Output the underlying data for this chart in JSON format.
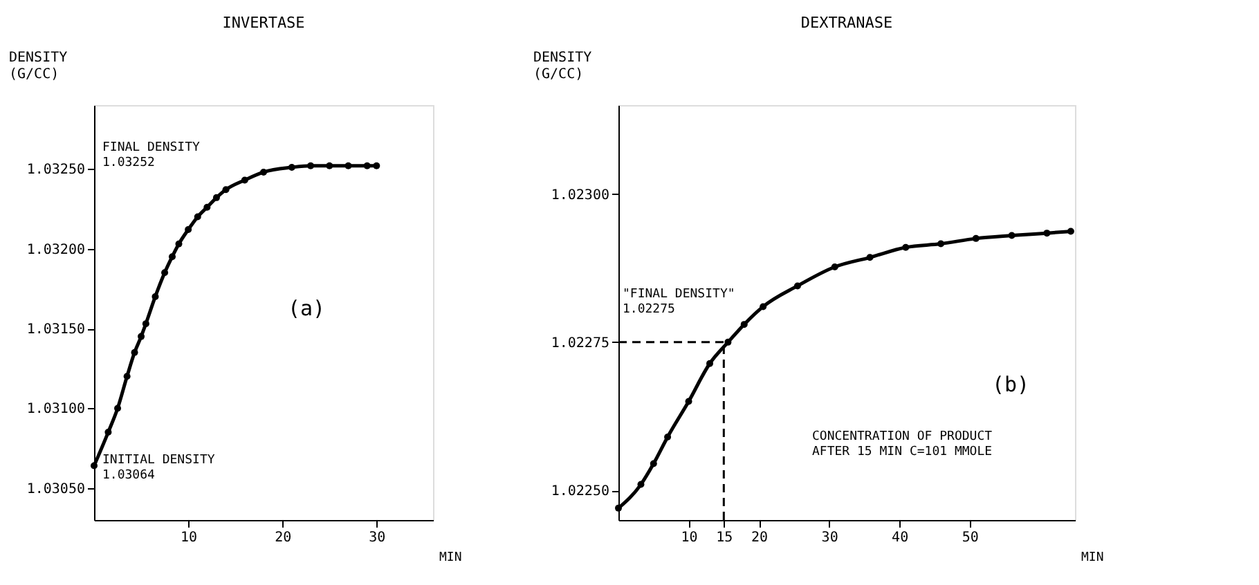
{
  "chart_data": [
    {
      "type": "line",
      "title": "INVERTASE",
      "ylabel": "DENSITY\n(G/CC)",
      "xlabel": "MIN",
      "marker": "circle",
      "line_style": "solid",
      "grid": false,
      "xlim": [
        0,
        36
      ],
      "xticks": [
        10,
        20,
        30
      ],
      "ylim": [
        1.0303,
        1.0329
      ],
      "yticks": [
        {
          "value": 1.0305,
          "label": "1.03050"
        },
        {
          "value": 1.031,
          "label": "1.03100"
        },
        {
          "value": 1.0315,
          "label": "1.03150"
        },
        {
          "value": 1.032,
          "label": "1.03200"
        },
        {
          "value": 1.0325,
          "label": "1.03250"
        }
      ],
      "series": [
        {
          "color": "#000000",
          "x": [
            0,
            1.5,
            2.5,
            3.5,
            4.3,
            5,
            5.5,
            6.5,
            7.5,
            8.3,
            9,
            10,
            11,
            12,
            13,
            14,
            16,
            18,
            21,
            23,
            25,
            27,
            29,
            30
          ],
          "values": [
            1.03064,
            1.03085,
            1.031,
            1.0312,
            1.03135,
            1.03145,
            1.03153,
            1.0317,
            1.03185,
            1.03195,
            1.03203,
            1.03212,
            1.0322,
            1.03226,
            1.03232,
            1.03237,
            1.03243,
            1.03248,
            1.03251,
            1.03252,
            1.03252,
            1.03252,
            1.03252,
            1.03252
          ]
        }
      ],
      "annotations": [
        "FINAL DENSITY\n1.03252",
        "INITIAL DENSITY\n1.03064",
        "(a)"
      ]
    },
    {
      "type": "line",
      "title": "DEXTRANASE",
      "ylabel": "DENSITY\n(G/CC)",
      "xlabel": "MIN",
      "marker": "circle",
      "line_style": "solid",
      "grid": false,
      "xlim": [
        0,
        65
      ],
      "xticks": [
        10,
        15,
        20,
        30,
        40,
        50
      ],
      "ylim": [
        1.02245,
        1.02315
      ],
      "yticks": [
        {
          "value": 1.0225,
          "label": "1.02250"
        },
        {
          "value": 1.02275,
          "label": "1.02275"
        },
        {
          "value": 1.023,
          "label": "1.02300"
        }
      ],
      "series": [
        {
          "color": "#000000",
          "x": [
            0,
            3.2,
            5,
            7,
            10,
            13,
            15.6,
            17.9,
            20.6,
            25.5,
            30.8,
            35.8,
            40.9,
            45.9,
            50.9,
            56,
            61,
            64.4
          ],
          "values": [
            1.02247,
            1.02251,
            1.022545,
            1.02259,
            1.02265,
            1.022714,
            1.02275,
            1.02278,
            1.02281,
            1.022845,
            1.022877,
            1.022893,
            1.02291,
            1.022916,
            1.022925,
            1.02293,
            1.022934,
            1.022937
          ]
        }
      ],
      "ref_lines": [
        {
          "axis": "y",
          "value": 1.02275,
          "line_style": "dashed"
        },
        {
          "axis": "x",
          "value": 15,
          "line_style": "dashed"
        }
      ],
      "annotations": [
        "\"FINAL DENSITY\"\n1.02275",
        "CONCENTRATION OF PRODUCT\nAFTER 15 MIN  C=101 MMOLE",
        "(b)"
      ]
    }
  ]
}
